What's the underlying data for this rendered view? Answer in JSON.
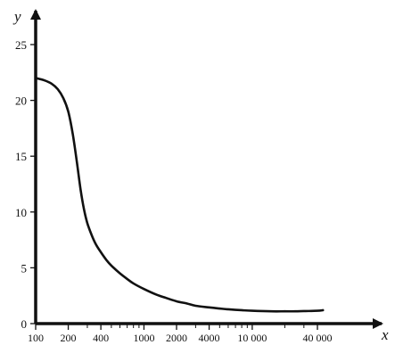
{
  "chart_data": {
    "type": "line",
    "title": "",
    "xlabel": "x",
    "ylabel": "y",
    "x_scale": "log",
    "x_ticks": [
      100,
      200,
      400,
      1000,
      2000,
      4000,
      10000,
      40000
    ],
    "x_tick_labels": [
      "100",
      "200",
      "400",
      "1000",
      "2000",
      "4000",
      "10 000",
      "40 000"
    ],
    "y_ticks": [
      0,
      5,
      10,
      15,
      20,
      25
    ],
    "y_tick_labels": [
      "0",
      "5",
      "10",
      "15",
      "20",
      "25"
    ],
    "xlim": [
      100,
      65000
    ],
    "ylim": [
      0,
      27
    ],
    "grid": false,
    "series": [
      {
        "x": [
          100,
          120,
          140,
          160,
          180,
          200,
          220,
          240,
          260,
          280,
          300,
          330,
          360,
          400,
          450,
          500,
          600,
          700,
          800,
          1000,
          1300,
          1600,
          2000,
          2500,
          3000,
          4000,
          5000,
          6000,
          8000,
          10000,
          15000,
          20000,
          25000,
          30000,
          40000,
          45000
        ],
        "y": [
          22,
          21.8,
          21.5,
          21,
          20.2,
          19,
          17,
          14.5,
          12,
          10.2,
          9,
          7.9,
          7.1,
          6.4,
          5.7,
          5.2,
          4.5,
          4.0,
          3.6,
          3.1,
          2.6,
          2.3,
          2.0,
          1.8,
          1.6,
          1.45,
          1.35,
          1.28,
          1.2,
          1.15,
          1.1,
          1.1,
          1.1,
          1.12,
          1.15,
          1.2
        ]
      }
    ]
  }
}
